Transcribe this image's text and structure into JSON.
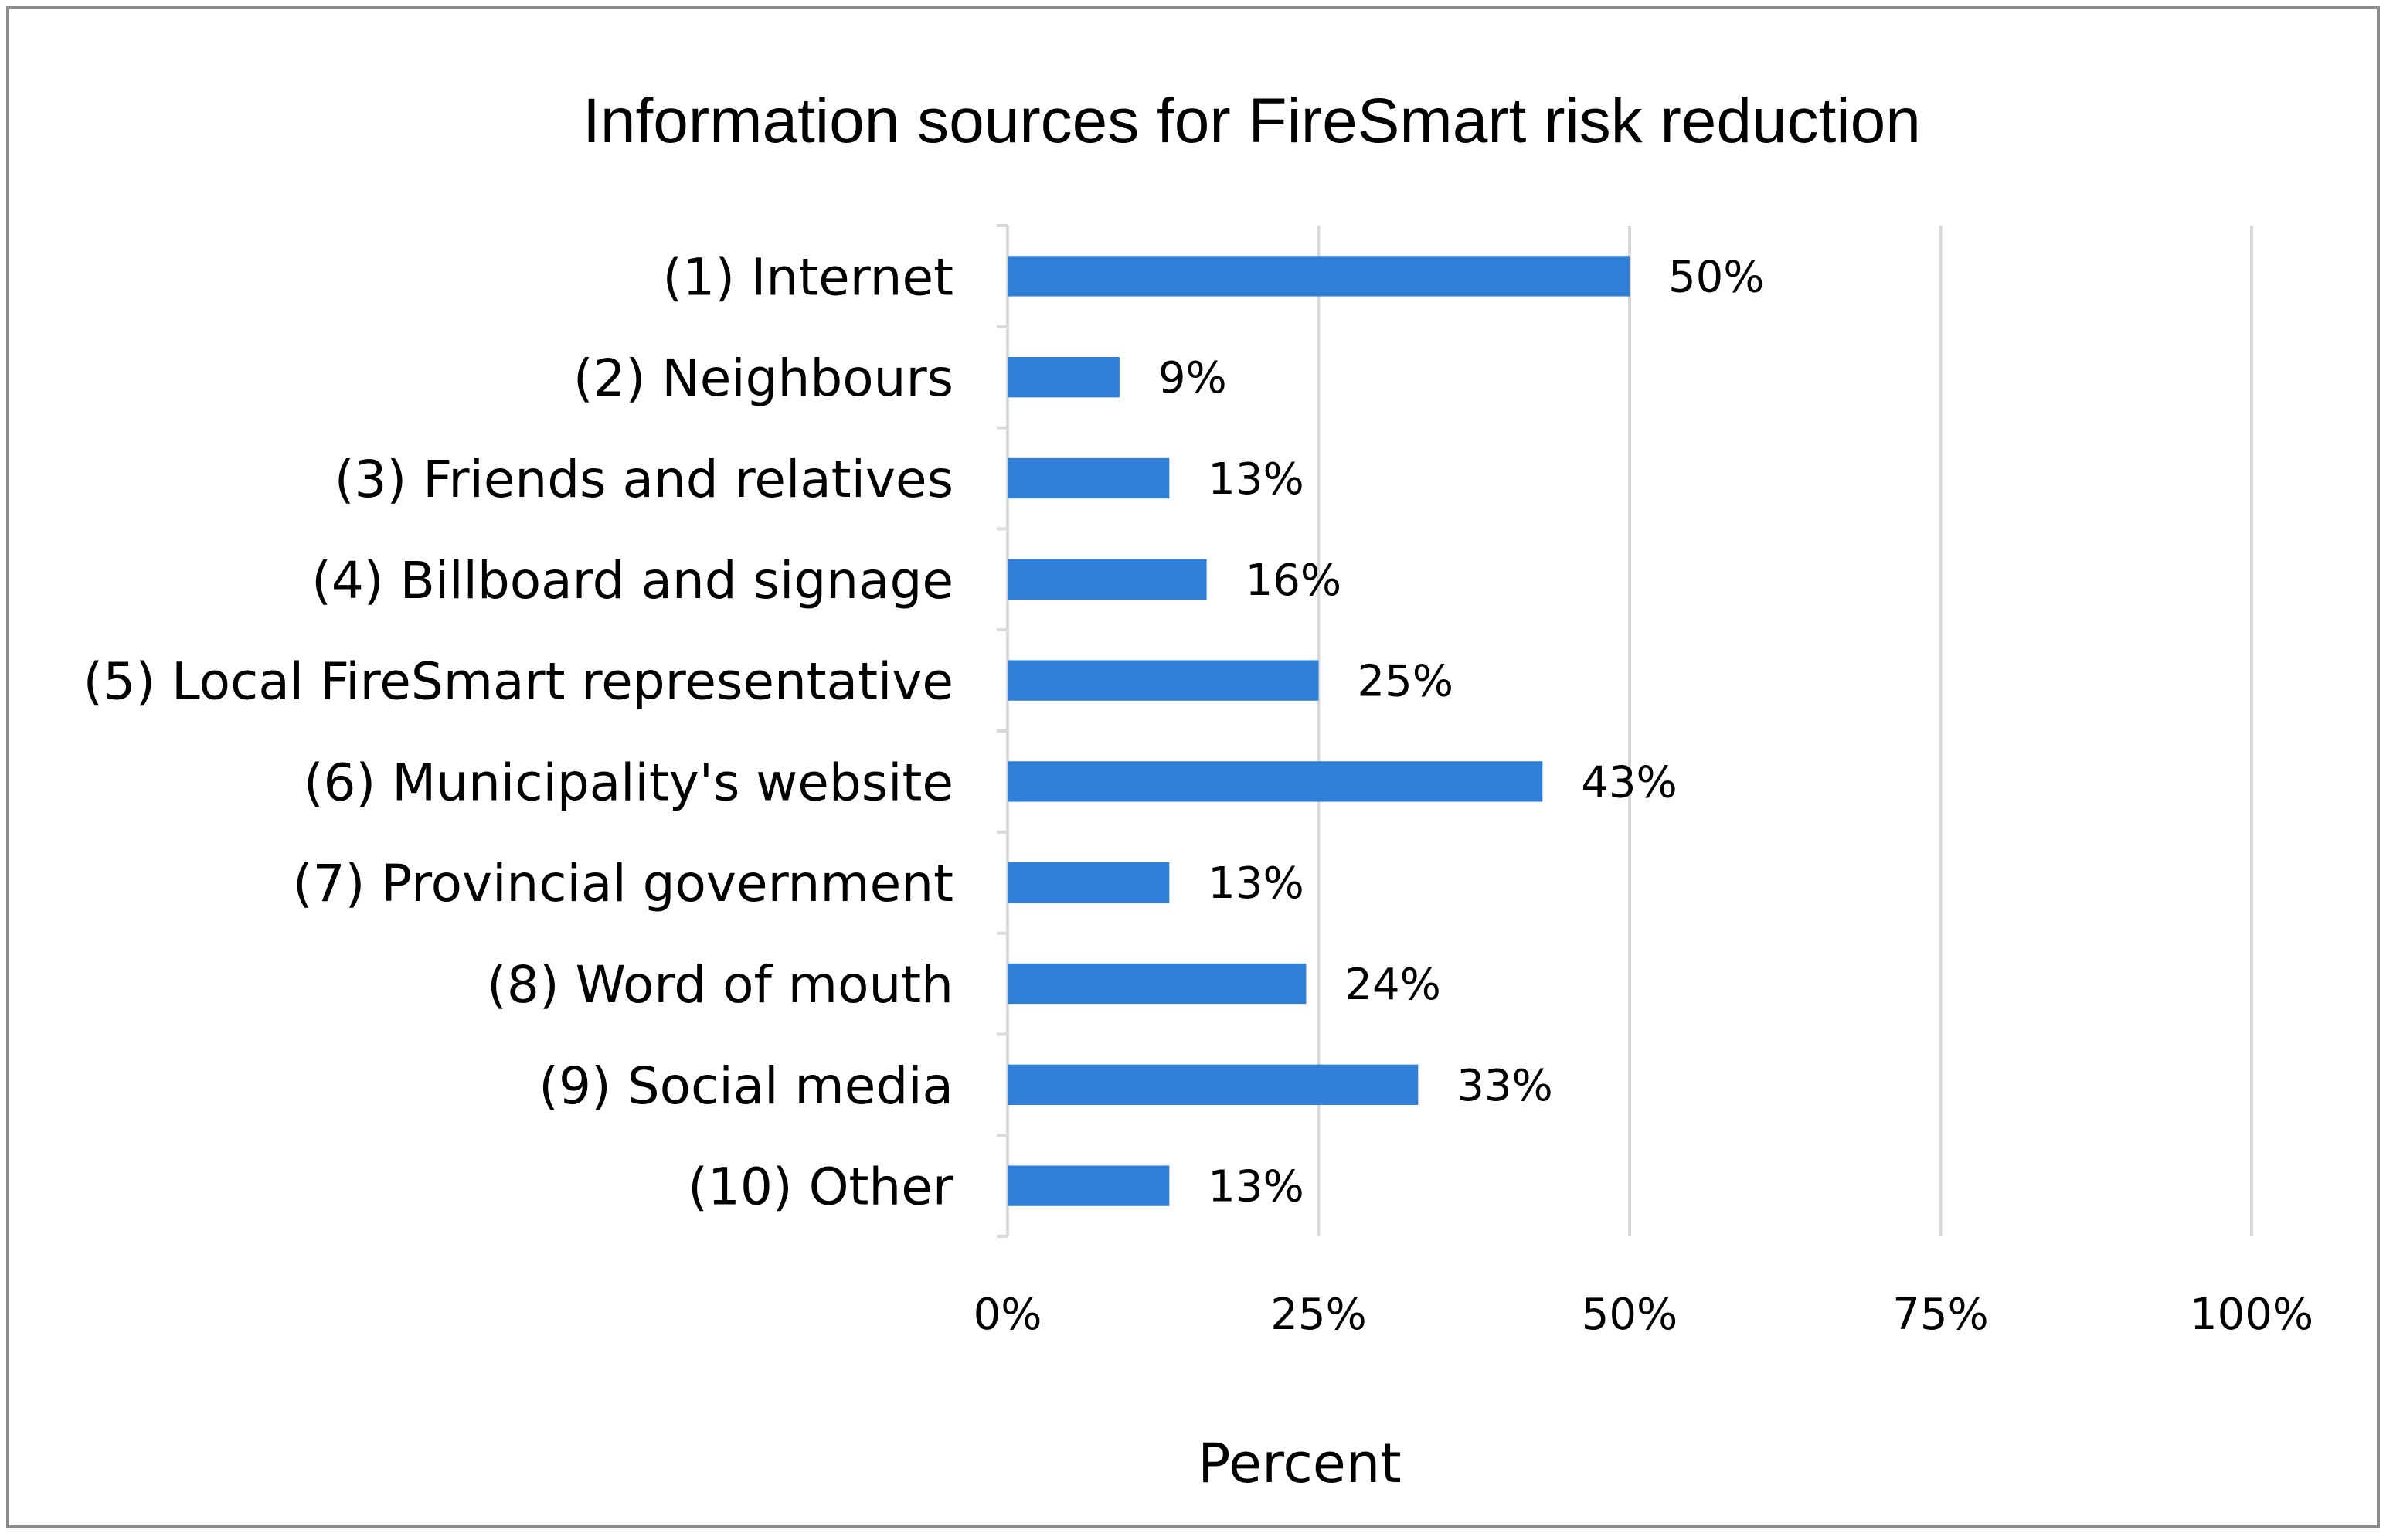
{
  "chart_data": {
    "type": "bar",
    "orientation": "horizontal",
    "title": "Information sources for FireSmart risk reduction",
    "xlabel": "Percent",
    "ylabel": "",
    "xlim": [
      0,
      100
    ],
    "xticks": [
      0,
      25,
      50,
      75,
      100
    ],
    "xtick_labels": [
      "0%",
      "25%",
      "50%",
      "75%",
      "100%"
    ],
    "grid": true,
    "legend": "none",
    "categories": [
      "(1) Internet",
      "(2) Neighbours",
      "(3) Friends and relatives",
      "(4) Billboard and signage",
      "(5) Local FireSmart representative",
      "(6) Municipality's website",
      "(7) Provincial government",
      "(8) Word of mouth",
      "(9) Social media",
      "(10) Other"
    ],
    "values": [
      50,
      9,
      13,
      16,
      25,
      43,
      13,
      24,
      33,
      13
    ],
    "value_labels": [
      "50%",
      "9%",
      "13%",
      "16%",
      "25%",
      "43%",
      "13%",
      "24%",
      "33%",
      "13%"
    ],
    "bar_color": "#2f7ed8",
    "grid_color": "#d9d9d9",
    "border_color": "#8c8c8c"
  }
}
